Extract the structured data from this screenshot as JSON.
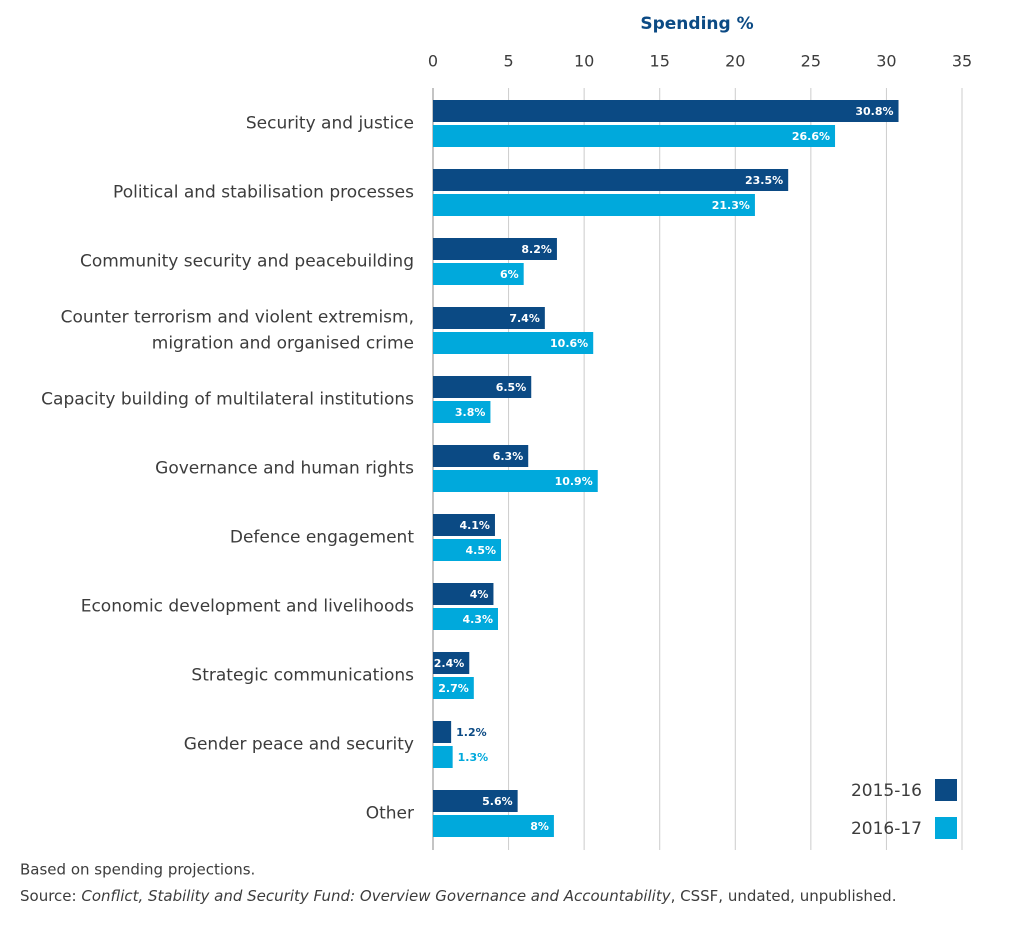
{
  "chart_data": {
    "type": "hbar",
    "x_label": "Spending %",
    "categories": [
      "Security and justice",
      "Political and stabilisation processes",
      "Community security and peacebuilding",
      "Counter terrorism and violent extremism, migration and organised crime",
      "Capacity building of multilateral institutions",
      "Governance and human rights",
      "Defence engagement",
      "Economic development and livelihoods",
      "Strategic communications",
      "Gender peace and security",
      "Other"
    ],
    "series": [
      {
        "name": "2015-16",
        "color": "#0b4a84",
        "values": [
          30.8,
          23.5,
          8.2,
          7.4,
          6.5,
          6.3,
          4.1,
          4,
          2.4,
          1.2,
          5.6
        ],
        "value_labels": [
          "30.8%",
          "23.5%",
          "8.2%",
          "7.4%",
          "6.5%",
          "6.3%",
          "4.1%",
          "4%",
          "2.4%",
          "1.2%",
          "5.6%"
        ]
      },
      {
        "name": "2016-17",
        "color": "#00a9dc",
        "values": [
          26.6,
          21.3,
          6,
          10.6,
          3.8,
          10.9,
          4.5,
          4.3,
          2.7,
          1.3,
          8
        ],
        "value_labels": [
          "26.6%",
          "21.3%",
          "6%",
          "10.6%",
          "3.8%",
          "10.9%",
          "4.5%",
          "4.3%",
          "2.7%",
          "1.3%",
          "8%"
        ]
      }
    ],
    "xlim": [
      0,
      35
    ],
    "xticks": [
      0,
      5,
      10,
      15,
      20,
      25,
      30,
      35
    ],
    "grid": true,
    "legend": "bottom-right",
    "note": "Based on spending projections.",
    "source": [
      "Source: ",
      "Conflict, Stability and Security Fund: Overview Governance and Accountability",
      ", CSSF, undated, unpublished."
    ]
  }
}
